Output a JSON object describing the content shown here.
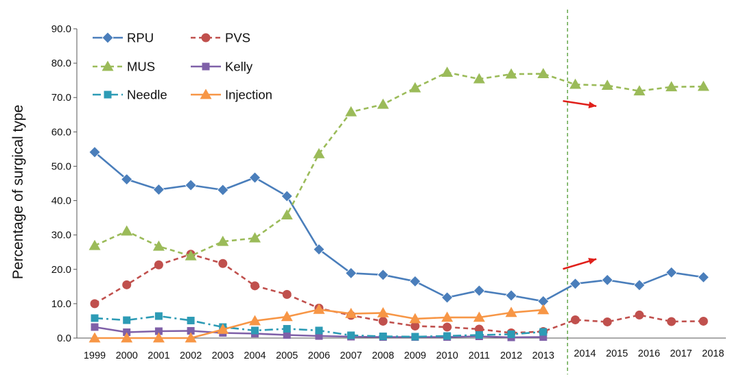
{
  "chart_data": {
    "type": "line",
    "ylabel": "Percentage of surgical type",
    "ylim": [
      0,
      90
    ],
    "yticks": [
      "0.0",
      "10.0",
      "20.0",
      "30.0",
      "40.0",
      "50.0",
      "60.0",
      "70.0",
      "80.0",
      "90.0"
    ],
    "categories": [
      "1999",
      "2000",
      "2001",
      "2002",
      "2003",
      "2004",
      "2005",
      "2006",
      "2007",
      "2008",
      "2009",
      "2010",
      "2011",
      "2012",
      "2013",
      "2014",
      "2015",
      "2016",
      "2017",
      "2018"
    ],
    "divider_after": "2013",
    "grid": false,
    "legend_placement": "top-left",
    "series": [
      {
        "name": "RPU",
        "color": "#4a7ebb",
        "marker": "diamond",
        "dash": "solid",
        "values": [
          54.1,
          46.2,
          43.2,
          44.5,
          43.1,
          46.7,
          41.3,
          25.8,
          18.9,
          18.4,
          16.5,
          11.8,
          13.8,
          12.4,
          10.7,
          15.8,
          16.9,
          15.4,
          19.1,
          17.7
        ]
      },
      {
        "name": "PVS",
        "color": "#c0504d",
        "marker": "circle",
        "dash": "dashed",
        "values": [
          10.0,
          15.5,
          21.3,
          24.4,
          21.7,
          15.2,
          12.7,
          8.7,
          6.6,
          4.9,
          3.5,
          3.2,
          2.6,
          1.5,
          1.9,
          5.3,
          4.7,
          6.7,
          4.8,
          4.9
        ]
      },
      {
        "name": "MUS",
        "color": "#9bbb59",
        "marker": "triangle",
        "dash": "dashed",
        "values": [
          26.9,
          31.1,
          26.7,
          23.9,
          28.1,
          29.1,
          35.8,
          53.6,
          65.8,
          68.0,
          72.8,
          77.3,
          75.4,
          76.8,
          76.9,
          73.8,
          73.5,
          71.9,
          73.1,
          73.2
        ]
      },
      {
        "name": "Kelly",
        "color": "#7f60a8",
        "marker": "square",
        "dash": "solid",
        "values": [
          3.2,
          1.7,
          2.0,
          2.1,
          1.5,
          1.3,
          0.9,
          0.6,
          0.4,
          0.3,
          0.3,
          0.3,
          0.5,
          0.2,
          0.3,
          null,
          null,
          null,
          null,
          null
        ]
      },
      {
        "name": "Needle",
        "color": "#2d9bb5",
        "marker": "square",
        "dash": "dashdot",
        "values": [
          5.8,
          5.2,
          6.4,
          5.1,
          3.2,
          2.2,
          2.7,
          2.2,
          0.8,
          0.5,
          0.4,
          0.6,
          0.9,
          1.1,
          1.8,
          null,
          null,
          null,
          null,
          null
        ]
      },
      {
        "name": "Injection",
        "color": "#f79646",
        "marker": "triangle",
        "dash": "solid",
        "values": [
          0.0,
          0.0,
          0.0,
          0.0,
          2.5,
          5.0,
          6.2,
          8.3,
          7.1,
          7.3,
          5.6,
          6.0,
          6.0,
          7.4,
          8.2,
          null,
          null,
          null,
          null,
          null
        ]
      }
    ],
    "annotations": [
      {
        "type": "arrow",
        "color": "#e0201b",
        "from": [
          "2014",
          69.0
        ],
        "to": [
          "2015",
          67.5
        ]
      },
      {
        "type": "arrow",
        "color": "#e0201b",
        "from": [
          "2014",
          20.1
        ],
        "to": [
          "2015",
          23.0
        ]
      }
    ]
  }
}
